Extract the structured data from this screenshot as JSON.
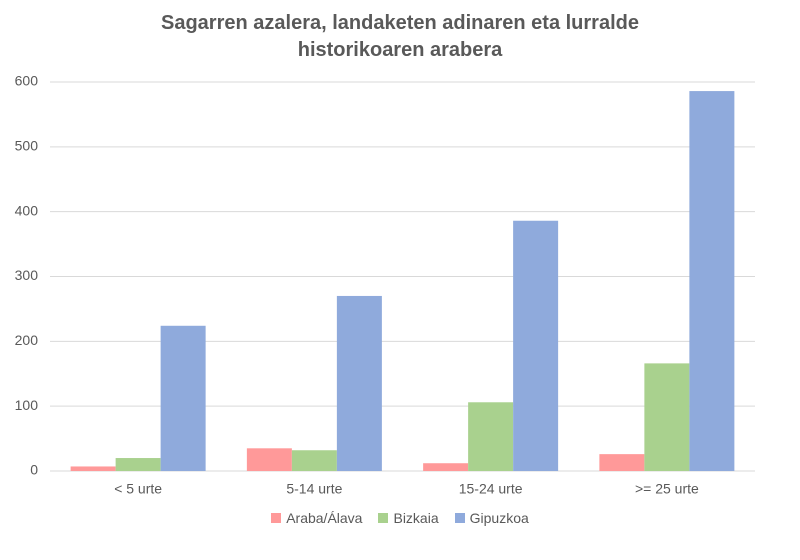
{
  "chart_data": {
    "type": "bar",
    "title": "Sagarren azalera, landaketen adinaren eta lurralde historikoaren arabera",
    "categories": [
      "< 5 urte",
      "5-14 urte",
      "15-24 urte",
      ">= 25 urte"
    ],
    "series": [
      {
        "name": "Araba/Álava",
        "color": "#ff9999",
        "values": [
          7,
          35,
          12,
          26
        ]
      },
      {
        "name": "Bizkaia",
        "color": "#a9d18e",
        "values": [
          20,
          32,
          106,
          166
        ]
      },
      {
        "name": "Gipuzkoa",
        "color": "#8faadc",
        "values": [
          224,
          270,
          386,
          586
        ]
      }
    ],
    "ylim": [
      0,
      600
    ],
    "yticks": [
      0,
      100,
      200,
      300,
      400,
      500,
      600
    ],
    "grid": true,
    "legend": "bottom"
  }
}
